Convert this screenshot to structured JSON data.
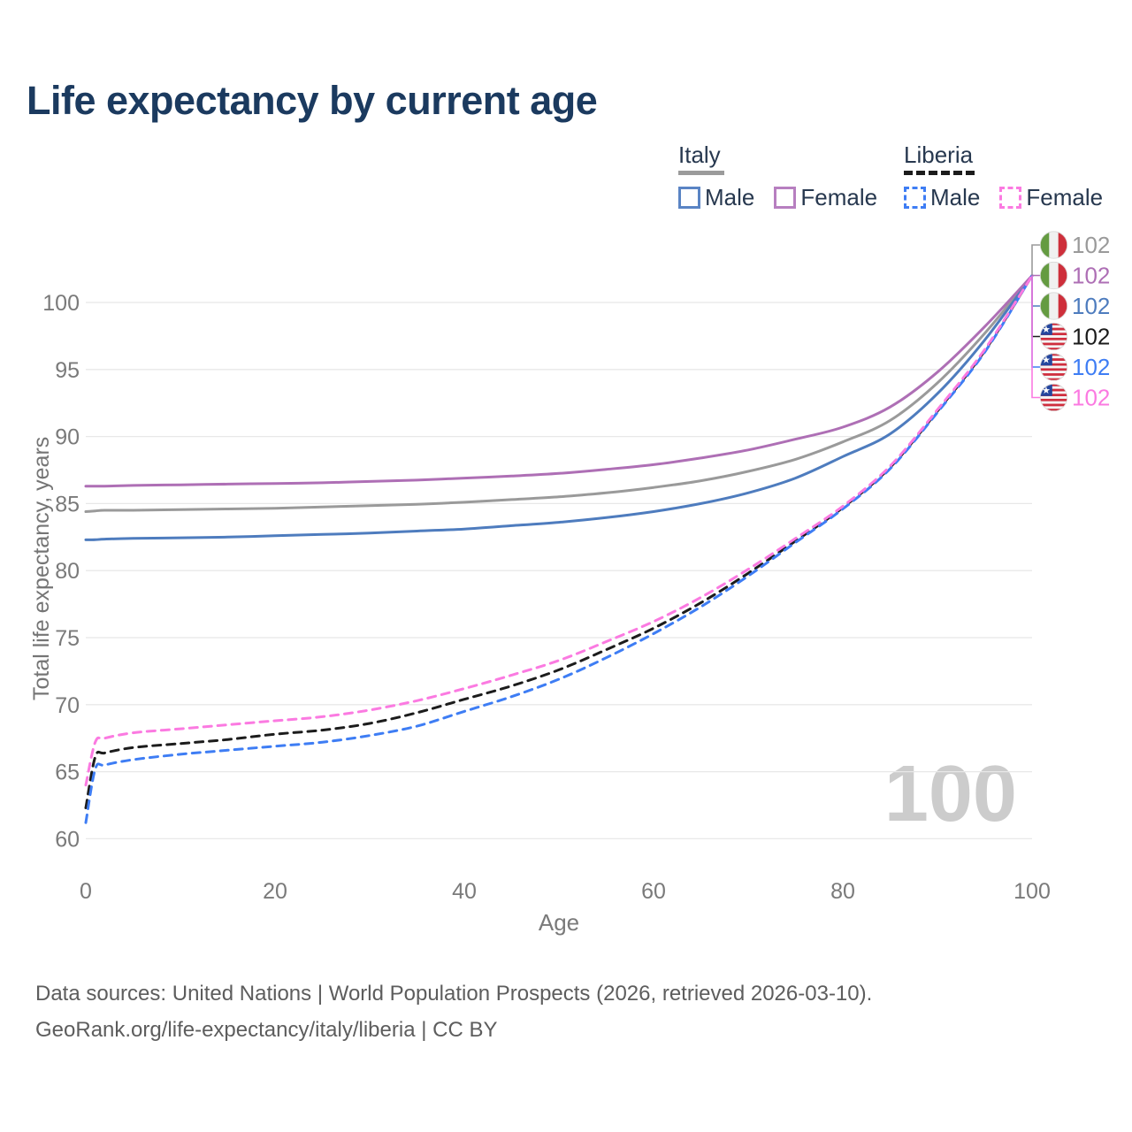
{
  "header": {
    "title": "Life expectancy by current age"
  },
  "legend": {
    "italy": {
      "label": "Italy",
      "male": "Male",
      "female": "Female"
    },
    "liberia": {
      "label": "Liberia",
      "male": "Male",
      "female": "Female"
    }
  },
  "axes": {
    "y_title": "Total life expectancy, years",
    "x_title": "Age",
    "yticks": [
      60,
      65,
      70,
      75,
      80,
      85,
      90,
      95,
      100
    ],
    "xticks": [
      0,
      20,
      40,
      60,
      80,
      100
    ]
  },
  "watermark": "100",
  "footer": {
    "line1": "Data sources: United Nations | World Population Prospects (2026, retrieved 2026-03-10).",
    "line2": "GeoRank.org/life-expectancy/italy/liberia | CC BY"
  },
  "colors": {
    "title": "#1b3a5f",
    "grid": "#e8e8e8",
    "tick": "#7a7a7a",
    "italy_male": "#4e7cbe",
    "italy_female": "#ae6fb5",
    "italy_total": "#9a9a9a",
    "liberia_male": "#3e7df4",
    "liberia_female": "#fb7ae1",
    "liberia_total": "#1c1c1c"
  },
  "chart_data": {
    "type": "line",
    "title": "Life expectancy by current age",
    "xlabel": "Age",
    "ylabel": "Total life expectancy, years",
    "xlim": [
      0,
      100
    ],
    "ylim": [
      60,
      103
    ],
    "grid": "horizontal",
    "legend_position": "top-right",
    "x": [
      0,
      1,
      2,
      5,
      10,
      15,
      20,
      25,
      30,
      35,
      40,
      45,
      50,
      55,
      60,
      65,
      70,
      75,
      80,
      85,
      90,
      95,
      100
    ],
    "series": [
      {
        "name": "Italy Total",
        "country": "Italy",
        "sex": "Total",
        "style": "solid",
        "color": "#9a9a9a",
        "flag": "italy",
        "end_label": "102",
        "values": [
          84.4,
          84.45,
          84.5,
          84.5,
          84.55,
          84.6,
          84.65,
          84.75,
          84.85,
          84.95,
          85.1,
          85.3,
          85.5,
          85.8,
          86.2,
          86.7,
          87.4,
          88.3,
          89.6,
          91.2,
          94.0,
          97.7,
          102
        ]
      },
      {
        "name": "Italy Female",
        "country": "Italy",
        "sex": "Female",
        "style": "solid",
        "color": "#ae6fb5",
        "flag": "italy",
        "end_label": "102",
        "values": [
          86.3,
          86.3,
          86.3,
          86.35,
          86.4,
          86.45,
          86.5,
          86.55,
          86.65,
          86.75,
          86.9,
          87.05,
          87.25,
          87.55,
          87.9,
          88.4,
          89.0,
          89.8,
          90.7,
          92.2,
          94.8,
          98.2,
          102
        ]
      },
      {
        "name": "Italy Male",
        "country": "Italy",
        "sex": "Male",
        "style": "solid",
        "color": "#4e7cbe",
        "flag": "italy",
        "end_label": "102",
        "values": [
          82.3,
          82.3,
          82.35,
          82.4,
          82.45,
          82.5,
          82.6,
          82.7,
          82.8,
          82.95,
          83.1,
          83.35,
          83.6,
          83.95,
          84.4,
          85.0,
          85.8,
          86.9,
          88.5,
          90.2,
          93.2,
          97.2,
          102
        ]
      },
      {
        "name": "Liberia Total",
        "country": "Liberia",
        "sex": "Total",
        "style": "dashed",
        "color": "#1c1c1c",
        "flag": "liberia",
        "end_label": "102",
        "values": [
          62.3,
          66.1,
          66.4,
          66.8,
          67.1,
          67.4,
          67.8,
          68.1,
          68.6,
          69.4,
          70.4,
          71.4,
          72.6,
          74.1,
          75.7,
          77.6,
          79.8,
          82.2,
          84.7,
          87.7,
          91.9,
          96.4,
          102
        ]
      },
      {
        "name": "Liberia Male",
        "country": "Liberia",
        "sex": "Male",
        "style": "dashed",
        "color": "#3e7df4",
        "flag": "liberia",
        "end_label": "102",
        "values": [
          61.2,
          65.2,
          65.5,
          65.9,
          66.3,
          66.6,
          66.9,
          67.2,
          67.7,
          68.4,
          69.5,
          70.6,
          71.9,
          73.5,
          75.3,
          77.3,
          79.6,
          82.1,
          84.6,
          87.6,
          91.8,
          96.3,
          102
        ]
      },
      {
        "name": "Liberia Female",
        "country": "Liberia",
        "sex": "Female",
        "style": "dashed",
        "color": "#fb7ae1",
        "flag": "liberia",
        "end_label": "102",
        "values": [
          64.0,
          67.2,
          67.5,
          67.9,
          68.2,
          68.5,
          68.8,
          69.1,
          69.6,
          70.3,
          71.2,
          72.2,
          73.3,
          74.7,
          76.2,
          78.0,
          80.1,
          82.4,
          84.8,
          87.8,
          92.0,
          96.5,
          102
        ]
      }
    ]
  }
}
